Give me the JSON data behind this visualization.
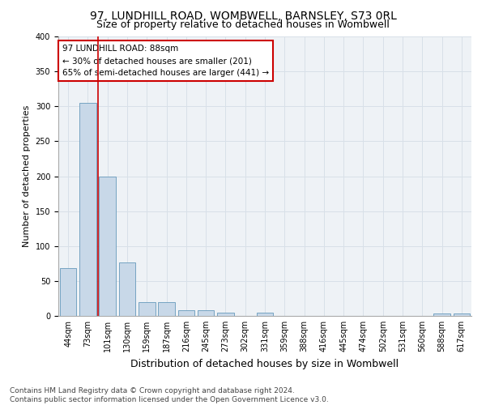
{
  "title": "97, LUNDHILL ROAD, WOMBWELL, BARNSLEY, S73 0RL",
  "subtitle": "Size of property relative to detached houses in Wombwell",
  "xlabel": "Distribution of detached houses by size in Wombwell",
  "ylabel": "Number of detached properties",
  "bin_labels": [
    "44sqm",
    "73sqm",
    "101sqm",
    "130sqm",
    "159sqm",
    "187sqm",
    "216sqm",
    "245sqm",
    "273sqm",
    "302sqm",
    "331sqm",
    "359sqm",
    "388sqm",
    "416sqm",
    "445sqm",
    "474sqm",
    "502sqm",
    "531sqm",
    "560sqm",
    "588sqm",
    "617sqm"
  ],
  "bar_heights": [
    68,
    305,
    200,
    77,
    20,
    20,
    8,
    8,
    5,
    0,
    5,
    0,
    0,
    0,
    0,
    0,
    0,
    0,
    0,
    4,
    4
  ],
  "bar_color": "#c8d8e8",
  "bar_edge_color": "#6699bb",
  "property_line_label": "97 LUNDHILL ROAD: 88sqm",
  "annotation_line1": "← 30% of detached houses are smaller (201)",
  "annotation_line2": "65% of semi-detached houses are larger (441) →",
  "annotation_box_color": "#ffffff",
  "annotation_border_color": "#cc0000",
  "vline_color": "#cc0000",
  "ylim": [
    0,
    400
  ],
  "yticks": [
    0,
    50,
    100,
    150,
    200,
    250,
    300,
    350,
    400
  ],
  "grid_color": "#d8e0e8",
  "bg_color": "#eef2f6",
  "footer_text": "Contains HM Land Registry data © Crown copyright and database right 2024.\nContains public sector information licensed under the Open Government Licence v3.0.",
  "title_fontsize": 10,
  "subtitle_fontsize": 9,
  "xlabel_fontsize": 9,
  "ylabel_fontsize": 8,
  "tick_fontsize": 7,
  "annotation_fontsize": 7.5,
  "footer_fontsize": 6.5
}
